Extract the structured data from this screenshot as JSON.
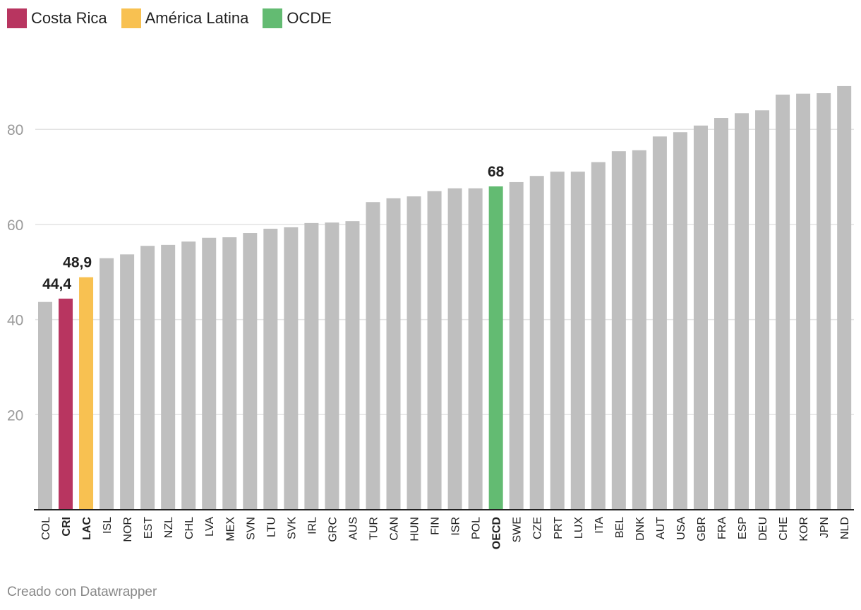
{
  "legend": [
    {
      "label": "Costa Rica",
      "color": "#b83560"
    },
    {
      "label": "América Latina",
      "color": "#f8c151"
    },
    {
      "label": "OCDE",
      "color": "#63bb72"
    }
  ],
  "footer": "Creado con Datawrapper",
  "chart_data": {
    "type": "bar",
    "categories": [
      "COL",
      "CRI",
      "LAC",
      "ISL",
      "NOR",
      "EST",
      "NZL",
      "CHL",
      "LVA",
      "MEX",
      "SVN",
      "LTU",
      "SVK",
      "IRL",
      "GRC",
      "AUS",
      "TUR",
      "CAN",
      "HUN",
      "FIN",
      "ISR",
      "POL",
      "OECD",
      "SWE",
      "CZE",
      "PRT",
      "LUX",
      "ITA",
      "BEL",
      "DNK",
      "AUT",
      "USA",
      "GBR",
      "FRA",
      "ESP",
      "DEU",
      "CHE",
      "KOR",
      "JPN",
      "NLD"
    ],
    "values": [
      43.7,
      44.4,
      48.9,
      52.9,
      53.7,
      55.5,
      55.7,
      56.4,
      57.2,
      57.3,
      58.2,
      59.1,
      59.4,
      60.3,
      60.4,
      60.7,
      64.7,
      65.5,
      65.9,
      67.0,
      67.6,
      67.6,
      68,
      68.9,
      70.2,
      71.1,
      71.1,
      73.1,
      75.4,
      75.6,
      78.5,
      79.4,
      80.8,
      82.4,
      83.4,
      84.0,
      87.3,
      87.5,
      87.6,
      89.1
    ],
    "highlights": {
      "CRI": "#b83560",
      "LAC": "#f8c151",
      "OECD": "#63bb72"
    },
    "default_color": "#bfbfbf",
    "bold_categories": [
      "CRI",
      "LAC",
      "OECD"
    ],
    "data_labels": [
      {
        "category": "CRI",
        "text": "44,4"
      },
      {
        "category": "LAC",
        "text": "48,9"
      },
      {
        "category": "OECD",
        "text": "68"
      }
    ],
    "yticks": [
      20,
      40,
      60,
      80
    ],
    "ylim": [
      0,
      93
    ],
    "grid": true
  }
}
